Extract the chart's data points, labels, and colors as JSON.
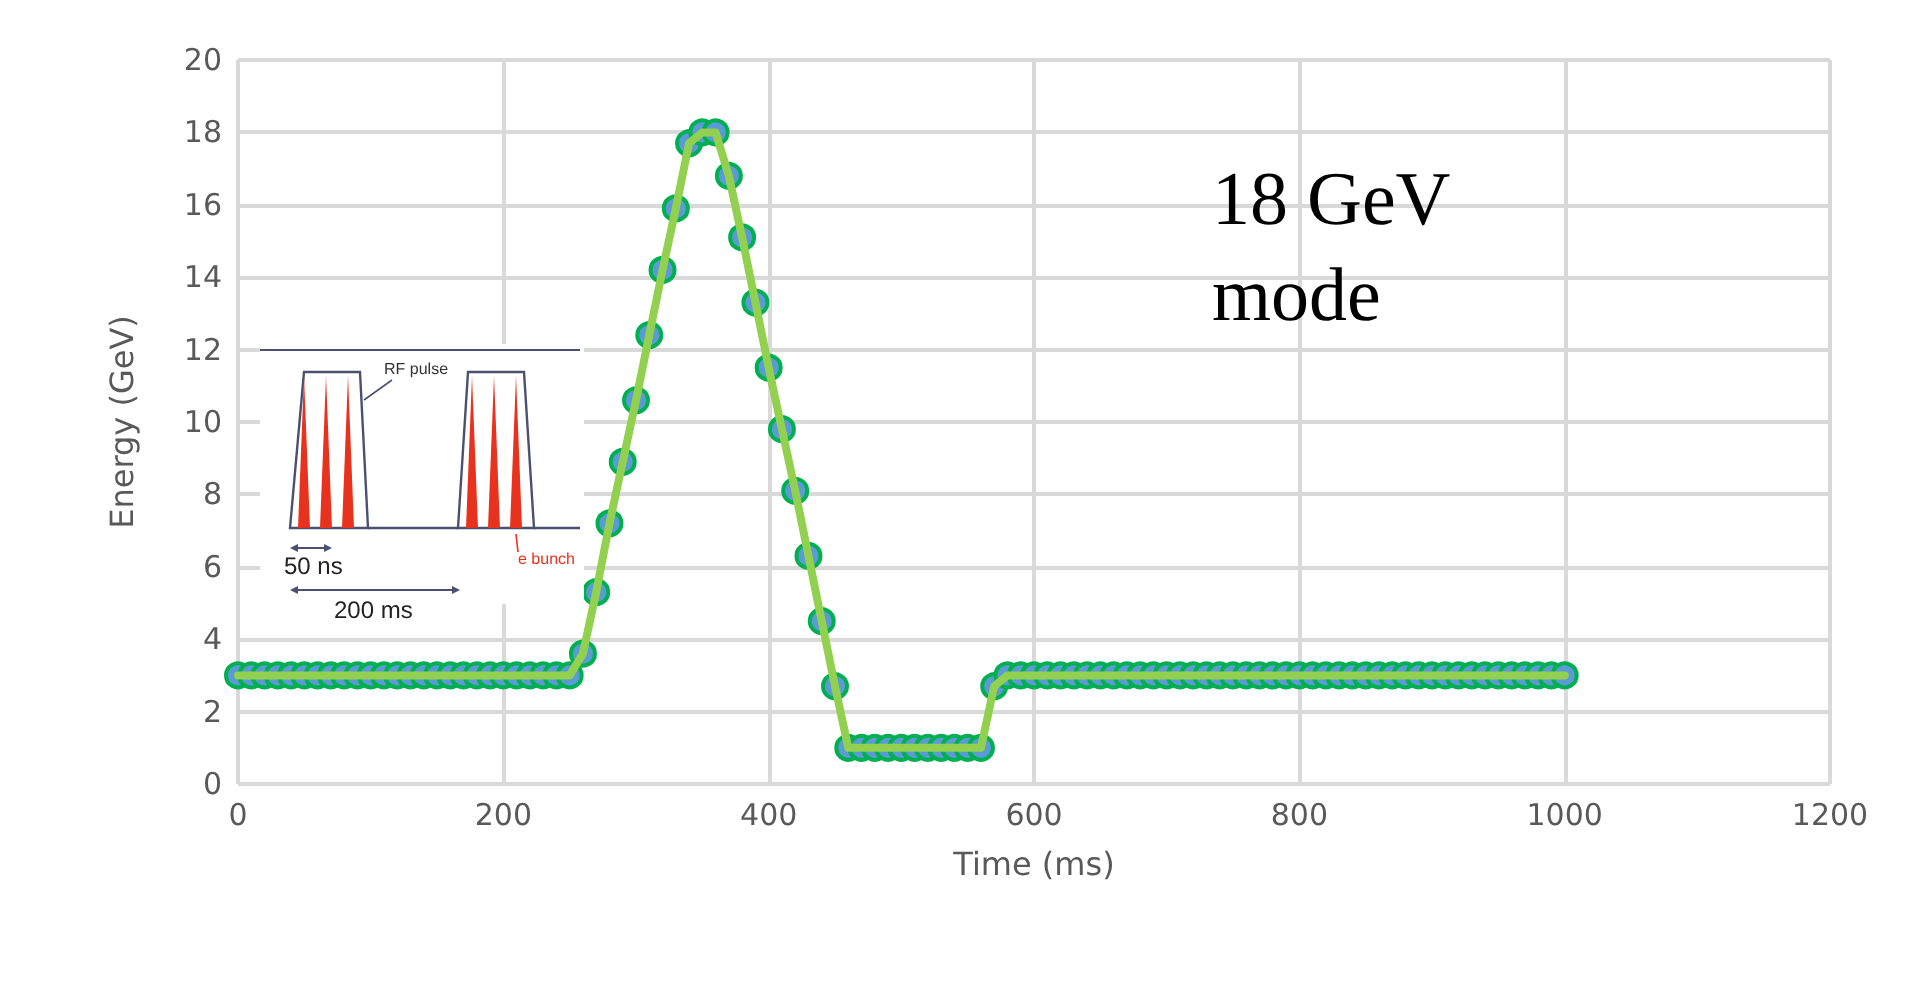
{
  "chart_data": {
    "type": "line",
    "xlabel": "Time (ms)",
    "ylabel": "Energy (GeV)",
    "x": [
      0,
      10,
      20,
      30,
      40,
      50,
      60,
      70,
      80,
      90,
      100,
      110,
      120,
      130,
      140,
      150,
      160,
      170,
      180,
      190,
      200,
      210,
      220,
      230,
      240,
      250,
      260,
      270,
      280,
      290,
      300,
      310,
      320,
      330,
      340,
      350,
      360,
      370,
      380,
      390,
      400,
      410,
      420,
      430,
      440,
      450,
      460,
      470,
      480,
      490,
      500,
      510,
      520,
      530,
      540,
      550,
      560,
      570,
      580,
      590,
      600,
      610,
      620,
      630,
      640,
      650,
      660,
      670,
      680,
      690,
      700,
      710,
      720,
      730,
      740,
      750,
      760,
      770,
      780,
      790,
      800,
      810,
      820,
      830,
      840,
      850,
      860,
      870,
      880,
      890,
      900,
      910,
      920,
      930,
      940,
      950,
      960,
      970,
      980,
      990,
      1000
    ],
    "series": [
      {
        "color": "#92d050",
        "values": [
          3,
          3,
          3,
          3,
          3,
          3,
          3,
          3,
          3,
          3,
          3,
          3,
          3,
          3,
          3,
          3,
          3,
          3,
          3,
          3,
          3,
          3,
          3,
          3,
          3,
          3,
          3.6,
          5.3,
          7.2,
          8.9,
          10.6,
          12.4,
          14.2,
          15.9,
          17.7,
          18,
          18,
          16.8,
          15.1,
          13.3,
          11.5,
          9.8,
          8.1,
          6.3,
          4.5,
          2.7,
          1,
          1,
          1,
          1,
          1,
          1,
          1,
          1,
          1,
          1,
          1,
          2.7,
          3,
          3,
          3,
          3,
          3,
          3,
          3,
          3,
          3,
          3,
          3,
          3,
          3,
          3,
          3,
          3,
          3,
          3,
          3,
          3,
          3,
          3,
          3,
          3,
          3,
          3,
          3,
          3,
          3,
          3,
          3,
          3,
          3,
          3,
          3,
          3,
          3,
          3,
          3,
          3,
          3,
          3,
          3
        ]
      }
    ],
    "xlim": [
      0,
      1200
    ],
    "xticks": [
      0,
      200,
      400,
      600,
      800,
      1000,
      1200
    ],
    "ylim": [
      0,
      20
    ],
    "yticks": [
      0,
      2,
      4,
      6,
      8,
      10,
      12,
      14,
      16,
      18,
      20
    ],
    "grid": true,
    "marker": "circle",
    "annotations": [
      "18 GeV mode",
      "RF pulse",
      "e bunch",
      "50 ns",
      "200 ms"
    ]
  }
}
